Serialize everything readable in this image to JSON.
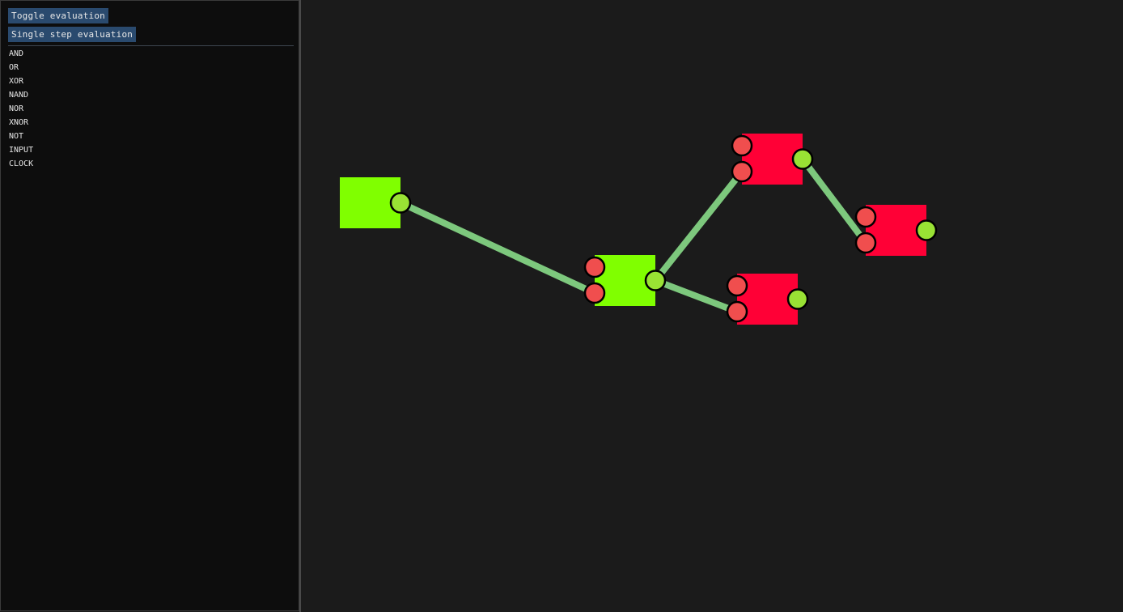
{
  "toolbar": {
    "toggle_label": "Toggle evaluation",
    "step_label": "Single step evaluation"
  },
  "gate_menu": {
    "items": [
      "AND",
      "OR",
      "XOR",
      "NAND",
      "NOR",
      "XNOR",
      "NOT",
      "INPUT",
      "CLOCK"
    ]
  },
  "colors": {
    "panel_background": "#0d0d0d",
    "canvas_background": "#1b1b1b",
    "button": "#2a4a6e",
    "node_active": "#80ff00",
    "node_inactive": "#ff0036",
    "pin_input": "#f04e4e",
    "pin_output": "#99e234",
    "wire": "#7dc87d"
  },
  "circuit": {
    "nodes": [
      {
        "id": "n1",
        "state": "on",
        "inputs": 0
      },
      {
        "id": "n2",
        "state": "on",
        "inputs": 2
      },
      {
        "id": "n3",
        "state": "off",
        "inputs": 2
      },
      {
        "id": "n4",
        "state": "off",
        "inputs": 2
      },
      {
        "id": "n5",
        "state": "off",
        "inputs": 2
      }
    ],
    "wires": [
      {
        "from": "n1",
        "to": "n2",
        "to_pin": 2
      },
      {
        "from": "n2",
        "to": "n3",
        "to_pin": 2
      },
      {
        "from": "n2",
        "to": "n4",
        "to_pin": 2
      },
      {
        "from": "n3",
        "to": "n5",
        "to_pin": 2
      }
    ]
  }
}
